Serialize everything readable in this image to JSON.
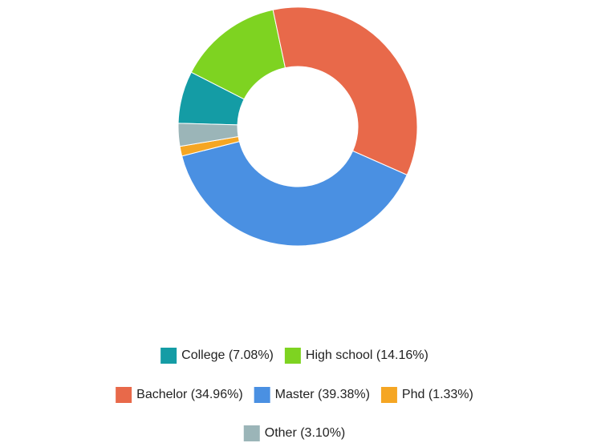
{
  "chart_data": {
    "type": "donut",
    "labels": [
      "College (7.08%)",
      "High school (14.16%)",
      "Bachelor (34.96%)",
      "Master (39.38%)",
      "Phd (1.33%)",
      "Other (3.10%)"
    ],
    "values": [
      7.08,
      14.16,
      34.96,
      39.38,
      1.33,
      3.1
    ],
    "colors": [
      "#149ca5",
      "#7ed321",
      "#e8694a",
      "#4a90e2",
      "#f5a623",
      "#9bb5b8"
    ]
  }
}
